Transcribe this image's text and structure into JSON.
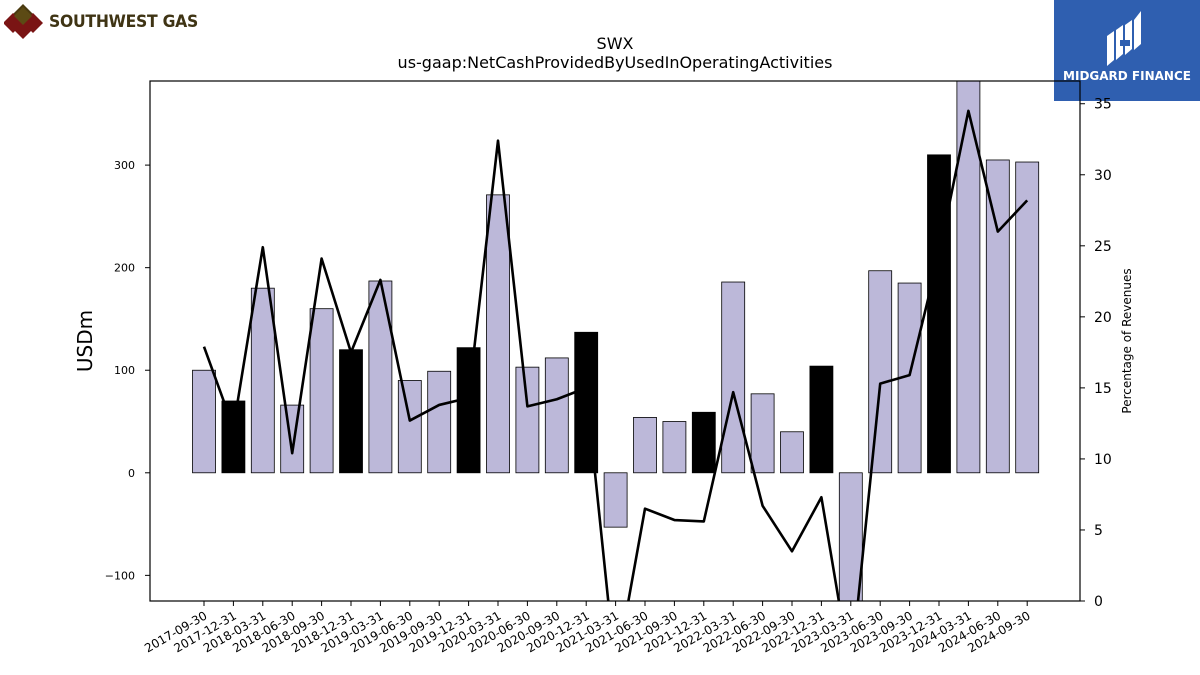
{
  "header": {
    "company_name": "SOUTHWEST GAS",
    "brand_name": "MIDGARD FINANCE"
  },
  "chart_data": {
    "type": "bar",
    "title": "SWX",
    "subtitle": "us-gaap:NetCashProvidedByUsedInOperatingActivities",
    "ylabel": "USDm",
    "y2label": "Percentage of Revenues",
    "ylim": [
      -125,
      382
    ],
    "y2lim": [
      0,
      36.6
    ],
    "yticks": [
      -100,
      0,
      100,
      200,
      300
    ],
    "y2ticks": [
      0,
      5,
      10,
      15,
      20,
      25,
      30,
      35
    ],
    "categories": [
      "2017-09-30",
      "2017-12-31",
      "2018-03-31",
      "2018-06-30",
      "2018-09-30",
      "2018-12-31",
      "2019-03-31",
      "2019-06-30",
      "2019-09-30",
      "2019-12-31",
      "2020-03-31",
      "2020-06-30",
      "2020-09-30",
      "2020-12-31",
      "2021-03-31",
      "2021-06-30",
      "2021-09-30",
      "2021-12-31",
      "2022-03-31",
      "2022-06-30",
      "2022-09-30",
      "2022-12-31",
      "2023-03-31",
      "2023-06-30",
      "2023-09-30",
      "2023-12-31",
      "2024-03-31",
      "2024-06-30",
      "2024-09-30"
    ],
    "values": [
      100,
      70,
      180,
      66,
      160,
      120,
      187,
      90,
      99,
      122,
      271,
      103,
      112,
      137,
      -53,
      54,
      50,
      59,
      186,
      77,
      40,
      104,
      -128,
      197,
      185,
      310,
      385,
      305,
      303
    ],
    "highlight": [
      false,
      true,
      false,
      false,
      false,
      true,
      false,
      false,
      false,
      true,
      false,
      false,
      false,
      true,
      false,
      false,
      false,
      true,
      false,
      false,
      false,
      true,
      false,
      false,
      false,
      true,
      false,
      false,
      false
    ],
    "percent_of_revenues": [
      17.9,
      12.2,
      24.9,
      10.4,
      24.1,
      17.5,
      22.6,
      12.7,
      13.8,
      14.3,
      32.4,
      13.7,
      14.2,
      15.0,
      -5.0,
      6.5,
      5.7,
      5.6,
      14.7,
      6.7,
      3.5,
      7.3,
      -5.0,
      15.3,
      15.9,
      24.4,
      34.5,
      26.0,
      28.2
    ],
    "colors": {
      "bar": "#bcb8d9",
      "highlight_bar": "#000000",
      "line": "#000000"
    }
  }
}
